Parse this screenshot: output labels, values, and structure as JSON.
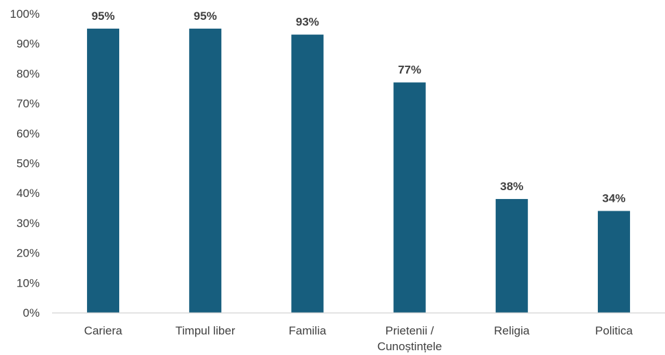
{
  "chart_data": {
    "type": "bar",
    "categories": [
      "Cariera",
      "Timpul liber",
      "Familia",
      "Prietenii / Cunoștințele",
      "Religia",
      "Politica"
    ],
    "category_lines": [
      [
        "Cariera"
      ],
      [
        "Timpul liber"
      ],
      [
        "Familia"
      ],
      [
        "Prietenii /",
        "Cunoștințele"
      ],
      [
        "Religia"
      ],
      [
        "Politica"
      ]
    ],
    "values": [
      95,
      95,
      93,
      77,
      38,
      34
    ],
    "data_labels": [
      "95%",
      "95%",
      "93%",
      "77%",
      "38%",
      "34%"
    ],
    "title": "",
    "xlabel": "",
    "ylabel": "",
    "ylim": [
      0,
      100
    ],
    "yticks": [
      0,
      10,
      20,
      30,
      40,
      50,
      60,
      70,
      80,
      90,
      100
    ],
    "ytick_labels": [
      "0%",
      "10%",
      "20%",
      "30%",
      "40%",
      "50%",
      "60%",
      "70%",
      "80%",
      "90%",
      "100%"
    ],
    "bar_color": "#175e7e",
    "axis_color": "#d9d9d9",
    "text_color": "#404040",
    "grid": false,
    "legend": "none"
  }
}
